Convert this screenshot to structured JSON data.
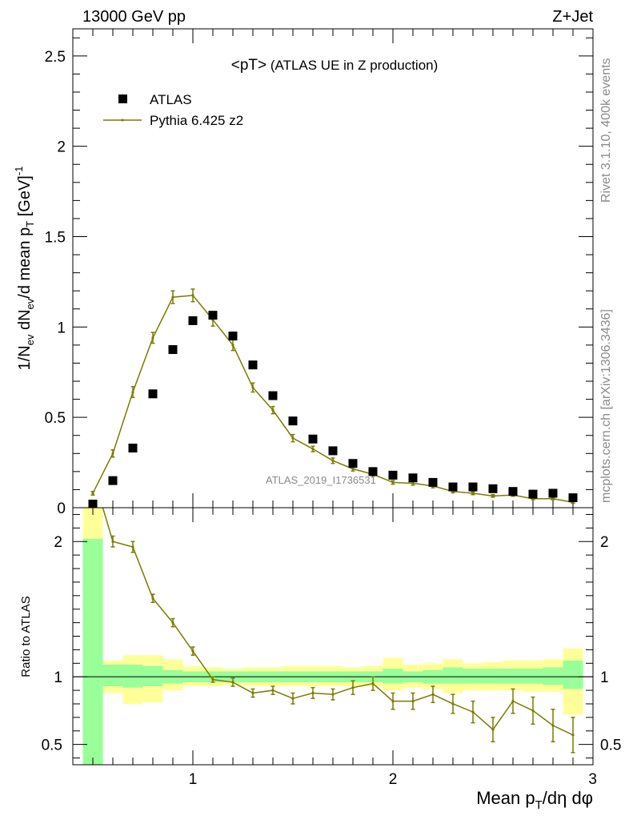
{
  "header": {
    "left": "13000 GeV pp",
    "right": "Z+Jet"
  },
  "side_texts": {
    "top": "Rivet 3.1.10,  400k events",
    "bottom": "mcplots.cern.ch [arXiv:1306.3436]"
  },
  "watermark": "ATLAS_2019_I1736531",
  "colors": {
    "mc": "#7b7b00",
    "band_inner": "#99ff99",
    "band_outer": "#ffff99",
    "data": "#000000"
  },
  "chart_data": [
    {
      "type": "scatter",
      "title": "<pT> (ATLAS UE in Z production)",
      "ylabel_parts": [
        "1/N",
        "ev",
        " dN",
        "ev",
        "/d mean p",
        "T",
        " [GeV]",
        "-1"
      ],
      "xlim": [
        0.4,
        3.0
      ],
      "ylim": [
        0,
        2.65
      ],
      "yticks": [
        0,
        0.5,
        1,
        1.5,
        2,
        2.5
      ],
      "ytick_labels": [
        "0",
        "0.5",
        "1",
        "1.5",
        "2",
        "2.5"
      ],
      "legend": {
        "position": "top-left",
        "entries": [
          {
            "name": "ATLAS",
            "marker": "square"
          },
          {
            "name": "Pythia 6.425 z2",
            "marker": "line"
          }
        ]
      },
      "series": [
        {
          "name": "ATLAS",
          "x": [
            0.5,
            0.6,
            0.7,
            0.8,
            0.9,
            1.0,
            1.1,
            1.2,
            1.3,
            1.4,
            1.5,
            1.6,
            1.7,
            1.8,
            1.9,
            2.0,
            2.1,
            2.2,
            2.3,
            2.4,
            2.5,
            2.6,
            2.7,
            2.8,
            2.9
          ],
          "y": [
            0.02,
            0.15,
            0.33,
            0.63,
            0.875,
            1.035,
            1.065,
            0.95,
            0.79,
            0.62,
            0.48,
            0.38,
            0.315,
            0.245,
            0.2,
            0.18,
            0.165,
            0.14,
            0.115,
            0.115,
            0.105,
            0.09,
            0.075,
            0.08,
            0.055
          ]
        },
        {
          "name": "Pythia 6.425 z2",
          "x": [
            0.5,
            0.6,
            0.7,
            0.8,
            0.9,
            1.0,
            1.1,
            1.2,
            1.3,
            1.4,
            1.5,
            1.6,
            1.7,
            1.8,
            1.9,
            2.0,
            2.1,
            2.2,
            2.3,
            2.4,
            2.5,
            2.6,
            2.7,
            2.8,
            2.9
          ],
          "y": [
            0.08,
            0.3,
            0.64,
            0.94,
            1.165,
            1.175,
            1.04,
            0.9,
            0.665,
            0.54,
            0.385,
            0.325,
            0.26,
            0.215,
            0.185,
            0.14,
            0.135,
            0.12,
            0.09,
            0.08,
            0.065,
            0.07,
            0.05,
            0.05,
            0.03
          ],
          "yerr": [
            0.01,
            0.02,
            0.03,
            0.03,
            0.035,
            0.035,
            0.035,
            0.03,
            0.025,
            0.02,
            0.02,
            0.015,
            0.015,
            0.012,
            0.01,
            0.01,
            0.01,
            0.01,
            0.008,
            0.008,
            0.007,
            0.007,
            0.006,
            0.006,
            0.006
          ]
        }
      ]
    },
    {
      "type": "line",
      "ylabel": "Ratio to ATLAS",
      "xlabel_parts": [
        "Mean p",
        "T",
        "/dη dφ"
      ],
      "xlim": [
        0.4,
        3.0
      ],
      "ylim": [
        0.35,
        2.25
      ],
      "xticks": [
        1,
        2,
        3
      ],
      "xtick_labels": [
        "1",
        "2",
        "3"
      ],
      "yticks": [
        0.5,
        1,
        2
      ],
      "ytick_labels": [
        "0.5",
        "1",
        "2"
      ],
      "reference_line": 1,
      "bins": [
        {
          "lo": 0.45,
          "hi": 0.55,
          "inner": [
            0.35,
            2.02
          ],
          "outer": [
            0.35,
            2.25
          ]
        },
        {
          "lo": 0.55,
          "hi": 0.65,
          "inner": [
            0.93,
            1.09
          ],
          "outer": [
            0.88,
            1.12
          ]
        },
        {
          "lo": 0.65,
          "hi": 0.75,
          "inner": [
            0.92,
            1.09
          ],
          "outer": [
            0.8,
            1.16
          ]
        },
        {
          "lo": 0.75,
          "hi": 0.85,
          "inner": [
            0.93,
            1.08
          ],
          "outer": [
            0.81,
            1.16
          ]
        },
        {
          "lo": 0.85,
          "hi": 0.95,
          "inner": [
            0.95,
            1.05
          ],
          "outer": [
            0.9,
            1.13
          ]
        },
        {
          "lo": 0.95,
          "hi": 1.05,
          "inner": [
            0.96,
            1.04
          ],
          "outer": [
            0.93,
            1.08
          ]
        },
        {
          "lo": 1.05,
          "hi": 1.15,
          "inner": [
            0.96,
            1.04
          ],
          "outer": [
            0.93,
            1.07
          ]
        },
        {
          "lo": 1.15,
          "hi": 1.25,
          "inner": [
            0.96,
            1.04
          ],
          "outer": [
            0.94,
            1.06
          ]
        },
        {
          "lo": 1.25,
          "hi": 1.35,
          "inner": [
            0.96,
            1.04
          ],
          "outer": [
            0.93,
            1.07
          ]
        },
        {
          "lo": 1.35,
          "hi": 1.45,
          "inner": [
            0.96,
            1.04
          ],
          "outer": [
            0.93,
            1.07
          ]
        },
        {
          "lo": 1.45,
          "hi": 1.55,
          "inner": [
            0.96,
            1.04
          ],
          "outer": [
            0.93,
            1.08
          ]
        },
        {
          "lo": 1.55,
          "hi": 1.65,
          "inner": [
            0.96,
            1.04
          ],
          "outer": [
            0.93,
            1.08
          ]
        },
        {
          "lo": 1.65,
          "hi": 1.75,
          "inner": [
            0.96,
            1.04
          ],
          "outer": [
            0.93,
            1.08
          ]
        },
        {
          "lo": 1.75,
          "hi": 1.85,
          "inner": [
            0.96,
            1.04
          ],
          "outer": [
            0.93,
            1.07
          ]
        },
        {
          "lo": 1.85,
          "hi": 1.95,
          "inner": [
            0.96,
            1.04
          ],
          "outer": [
            0.93,
            1.08
          ]
        },
        {
          "lo": 1.95,
          "hi": 2.05,
          "inner": [
            0.95,
            1.06
          ],
          "outer": [
            0.9,
            1.14
          ]
        },
        {
          "lo": 2.05,
          "hi": 2.15,
          "inner": [
            0.96,
            1.04
          ],
          "outer": [
            0.92,
            1.09
          ]
        },
        {
          "lo": 2.15,
          "hi": 2.25,
          "inner": [
            0.95,
            1.05
          ],
          "outer": [
            0.91,
            1.1
          ]
        },
        {
          "lo": 2.25,
          "hi": 2.35,
          "inner": [
            0.95,
            1.07
          ],
          "outer": [
            0.88,
            1.13
          ]
        },
        {
          "lo": 2.35,
          "hi": 2.45,
          "inner": [
            0.95,
            1.06
          ],
          "outer": [
            0.9,
            1.1
          ]
        },
        {
          "lo": 2.45,
          "hi": 2.55,
          "inner": [
            0.95,
            1.06
          ],
          "outer": [
            0.9,
            1.11
          ]
        },
        {
          "lo": 2.55,
          "hi": 2.65,
          "inner": [
            0.95,
            1.06
          ],
          "outer": [
            0.9,
            1.12
          ]
        },
        {
          "lo": 2.65,
          "hi": 2.75,
          "inner": [
            0.95,
            1.06
          ],
          "outer": [
            0.89,
            1.12
          ]
        },
        {
          "lo": 2.75,
          "hi": 2.85,
          "inner": [
            0.94,
            1.07
          ],
          "outer": [
            0.89,
            1.13
          ]
        },
        {
          "lo": 2.85,
          "hi": 2.95,
          "inner": [
            0.91,
            1.12
          ],
          "outer": [
            0.72,
            1.21
          ]
        }
      ],
      "series": [
        {
          "name": "Pythia 6.425 z2",
          "x": [
            0.6,
            0.7,
            0.8,
            0.9,
            1.0,
            1.1,
            1.2,
            1.3,
            1.4,
            1.5,
            1.6,
            1.7,
            1.8,
            1.9,
            2.0,
            2.1,
            2.2,
            2.3,
            2.4,
            2.5,
            2.6,
            2.7,
            2.8,
            2.9
          ],
          "y": [
            2.0,
            1.96,
            1.58,
            1.4,
            1.19,
            0.98,
            0.96,
            0.88,
            0.9,
            0.84,
            0.88,
            0.87,
            0.92,
            0.95,
            0.82,
            0.82,
            0.87,
            0.8,
            0.74,
            0.61,
            0.82,
            0.75,
            0.64,
            0.57
          ],
          "yerr": [
            0.04,
            0.04,
            0.03,
            0.03,
            0.03,
            0.02,
            0.03,
            0.03,
            0.03,
            0.04,
            0.04,
            0.04,
            0.05,
            0.05,
            0.06,
            0.06,
            0.06,
            0.07,
            0.08,
            0.09,
            0.09,
            0.1,
            0.12,
            0.13
          ]
        }
      ]
    }
  ]
}
